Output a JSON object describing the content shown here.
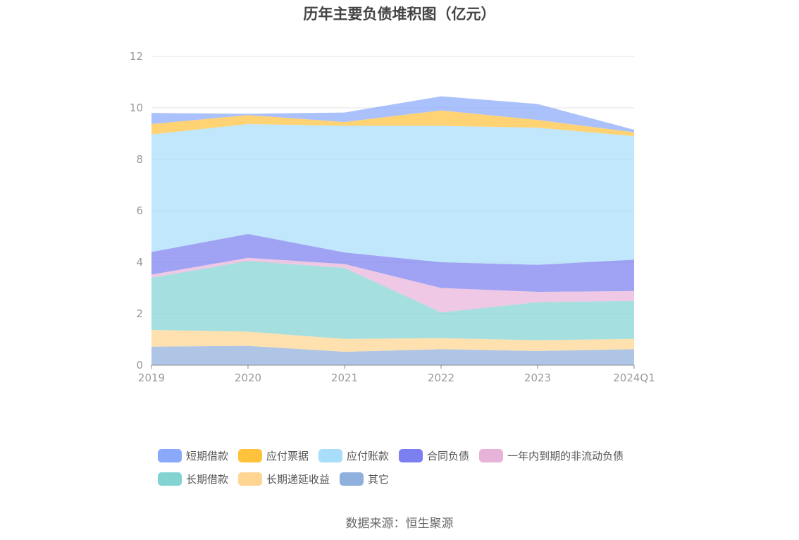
{
  "chart_data": {
    "type": "area",
    "stacked": true,
    "title": "历年主要负债堆积图（亿元）",
    "categories": [
      "2019",
      "2020",
      "2021",
      "2022",
      "2023",
      "2024Q1"
    ],
    "ylim": [
      0,
      12
    ],
    "yticks": [
      0,
      2,
      4,
      6,
      8,
      10,
      12
    ],
    "grid": true,
    "legend_position": "bottom",
    "series": [
      {
        "name": "其它",
        "color": "#8fafdc",
        "values": [
          0.72,
          0.75,
          0.52,
          0.62,
          0.55,
          0.62
        ]
      },
      {
        "name": "长期递延收益",
        "color": "#ffd591",
        "values": [
          0.65,
          0.55,
          0.5,
          0.43,
          0.42,
          0.4
        ]
      },
      {
        "name": "长期借款",
        "color": "#83d3d3",
        "values": [
          2.03,
          2.75,
          2.76,
          1.0,
          1.48,
          1.48
        ]
      },
      {
        "name": "一年内到期的非流动负债",
        "color": "#e8b3d9",
        "values": [
          0.12,
          0.12,
          0.15,
          0.95,
          0.4,
          0.38
        ]
      },
      {
        "name": "合同负债",
        "color": "#7b7ff0",
        "values": [
          0.88,
          0.93,
          0.45,
          1.0,
          1.05,
          1.22
        ]
      },
      {
        "name": "应付账款",
        "color": "#a8defa",
        "values": [
          4.57,
          4.27,
          4.92,
          5.3,
          5.33,
          4.8
        ]
      },
      {
        "name": "应付票据",
        "color": "#ffc23d",
        "values": [
          0.4,
          0.35,
          0.15,
          0.6,
          0.3,
          0.15
        ]
      },
      {
        "name": "短期借款",
        "color": "#8aa9fb",
        "values": [
          0.43,
          0.05,
          0.37,
          0.55,
          0.62,
          0.1
        ]
      }
    ],
    "legend_order": [
      "短期借款",
      "应付票据",
      "应付账款",
      "合同负债",
      "一年内到期的非流动负债",
      "长期借款",
      "长期递延收益",
      "其它"
    ]
  },
  "source_label": "数据来源：恒生聚源"
}
